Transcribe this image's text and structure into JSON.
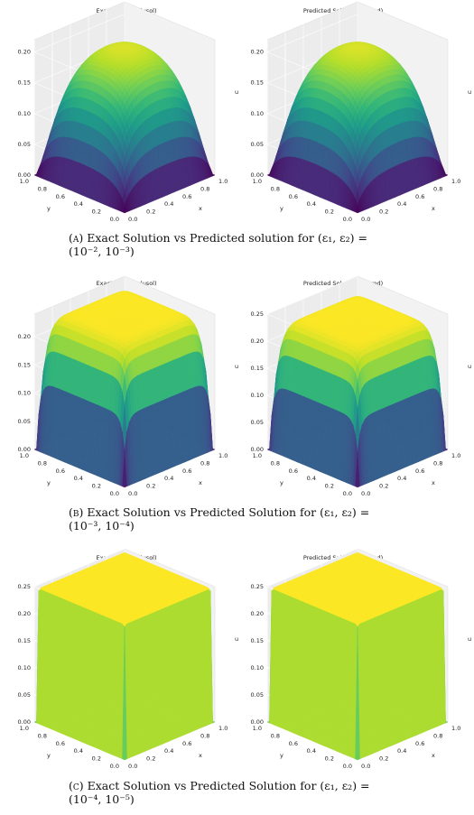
{
  "figures": [
    {
      "caption_label": "(a)",
      "caption_text": "Exact Solution vs Predicted solution for (ε₁, ε₂) = (10⁻², 10⁻³)",
      "plots": [
        {
          "title": "Exact Solution (usol)"
        },
        {
          "title": "Predicted Solution (u_pred)"
        }
      ]
    },
    {
      "caption_label": "(b)",
      "caption_text": "Exact Solution vs Predicted Solution for (ε₁, ε₂) = (10⁻³, 10⁻⁴)",
      "plots": [
        {
          "title": "Exact Solution (usol)"
        },
        {
          "title": "Predicted Solution (u_pred)"
        }
      ]
    },
    {
      "caption_label": "(c)",
      "caption_text": "Exact Solution vs Predicted Solution for (ε₁, ε₂) = (10⁻⁴, 10⁻⁵)",
      "plots": [
        {
          "title": "Exact Solution (usol)"
        },
        {
          "title": "Predicted Solution (u_pred)"
        }
      ]
    }
  ],
  "chart_data": [
    {
      "type": "surface3d",
      "title": "Exact Solution (usol)",
      "xlabel": "x",
      "ylabel": "y",
      "zlabel": "u",
      "x_ticks": [
        "0.0",
        "0.2",
        "0.4",
        "0.6",
        "0.8",
        "1.0"
      ],
      "y_ticks": [
        "0.0",
        "0.2",
        "0.4",
        "0.6",
        "0.8",
        "1.0"
      ],
      "z_ticks": [
        "0.00",
        "0.05",
        "0.10",
        "0.15",
        "0.20"
      ],
      "zlim": [
        0,
        0.22
      ],
      "peak": 0.22,
      "shape": "dome",
      "colormap": "viridis"
    },
    {
      "type": "surface3d",
      "title": "Predicted Solution (u_pred)",
      "xlabel": "x",
      "ylabel": "y",
      "zlabel": "u",
      "x_ticks": [
        "0.0",
        "0.2",
        "0.4",
        "0.6",
        "0.8",
        "1.0"
      ],
      "y_ticks": [
        "0.0",
        "0.2",
        "0.4",
        "0.6",
        "0.8",
        "1.0"
      ],
      "z_ticks": [
        "0.00",
        "0.05",
        "0.10",
        "0.15",
        "0.20"
      ],
      "zlim": [
        0,
        0.22
      ],
      "peak": 0.22,
      "shape": "dome",
      "colormap": "viridis"
    },
    {
      "type": "surface3d",
      "title": "Exact Solution (usol)",
      "xlabel": "x",
      "ylabel": "y",
      "zlabel": "u",
      "x_ticks": [
        "0.0",
        "0.2",
        "0.4",
        "0.6",
        "0.8",
        "1.0"
      ],
      "y_ticks": [
        "0.0",
        "0.2",
        "0.4",
        "0.6",
        "0.8",
        "1.0"
      ],
      "z_ticks": [
        "0.00",
        "0.05",
        "0.10",
        "0.15",
        "0.20"
      ],
      "zlim": [
        0,
        0.24
      ],
      "peak": 0.24,
      "shape": "box",
      "colormap": "viridis"
    },
    {
      "type": "surface3d",
      "title": "Predicted Solution (u_pred)",
      "xlabel": "x",
      "ylabel": "y",
      "zlabel": "u",
      "x_ticks": [
        "0.0",
        "0.2",
        "0.4",
        "0.6",
        "0.8",
        "1.0"
      ],
      "y_ticks": [
        "0.0",
        "0.2",
        "0.4",
        "0.6",
        "0.8",
        "1.0"
      ],
      "z_ticks": [
        "0.00",
        "0.05",
        "0.10",
        "0.15",
        "0.20",
        "0.25"
      ],
      "zlim": [
        0,
        0.25
      ],
      "peak": 0.24,
      "shape": "box",
      "colormap": "viridis"
    },
    {
      "type": "surface3d",
      "title": "Exact Solution (usol)",
      "xlabel": "x",
      "ylabel": "y",
      "zlabel": "u",
      "x_ticks": [
        "0.0",
        "0.2",
        "0.4",
        "0.6",
        "0.8",
        "1.0"
      ],
      "y_ticks": [
        "0.0",
        "0.2",
        "0.4",
        "0.6",
        "0.8",
        "1.0"
      ],
      "z_ticks": [
        "0.00",
        "0.05",
        "0.10",
        "0.15",
        "0.20",
        "0.25"
      ],
      "zlim": [
        0,
        0.25
      ],
      "peak": 0.25,
      "shape": "flat-box",
      "colormap": "viridis"
    },
    {
      "type": "surface3d",
      "title": "Predicted Solution (u_pred)",
      "xlabel": "x",
      "ylabel": "y",
      "zlabel": "u",
      "x_ticks": [
        "0.0",
        "0.2",
        "0.4",
        "0.6",
        "0.8",
        "1.0"
      ],
      "y_ticks": [
        "0.0",
        "0.2",
        "0.4",
        "0.6",
        "0.8",
        "1.0"
      ],
      "z_ticks": [
        "0.00",
        "0.05",
        "0.10",
        "0.15",
        "0.20",
        "0.25"
      ],
      "zlim": [
        0,
        0.25
      ],
      "peak": 0.25,
      "shape": "flat-box",
      "colormap": "viridis"
    }
  ]
}
